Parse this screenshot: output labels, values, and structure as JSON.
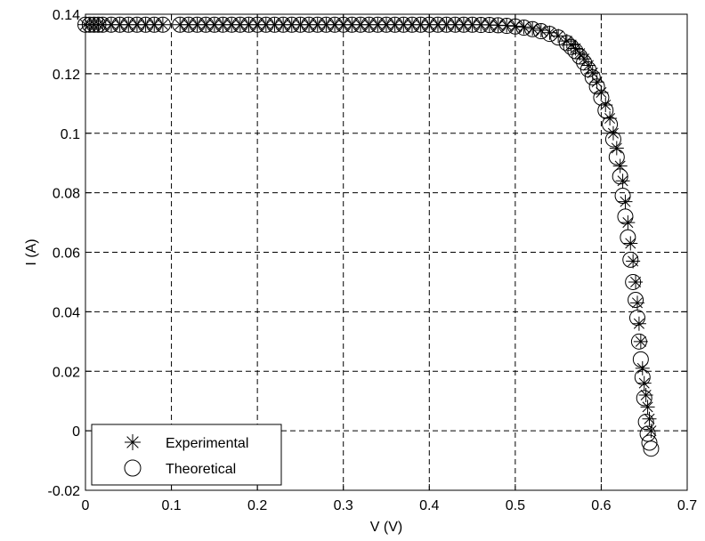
{
  "chart_data": {
    "type": "scatter",
    "title": "",
    "xlabel": "V (V)",
    "ylabel": "I (A)",
    "xlim": [
      0,
      0.7
    ],
    "ylim": [
      -0.02,
      0.14
    ],
    "grid": true,
    "grid_style": "dashed",
    "legend_position": "bottom-left",
    "x_tick_labels": [
      "0",
      "0.1",
      "0.2",
      "0.3",
      "0.4",
      "0.5",
      "0.6",
      "0.7"
    ],
    "y_tick_labels": [
      "-0.02",
      "0",
      "0.02",
      "0.04",
      "0.06",
      "0.08",
      "0.1",
      "0.12",
      "0.14"
    ],
    "series": [
      {
        "name": "Experimental",
        "marker": "asterisk",
        "color": "#000000",
        "x": [
          0.0,
          0.005,
          0.01,
          0.015,
          0.02,
          0.03,
          0.04,
          0.05,
          0.06,
          0.07,
          0.08,
          0.09,
          0.11,
          0.12,
          0.13,
          0.14,
          0.15,
          0.16,
          0.17,
          0.18,
          0.19,
          0.2,
          0.21,
          0.22,
          0.23,
          0.24,
          0.25,
          0.26,
          0.27,
          0.28,
          0.29,
          0.3,
          0.31,
          0.32,
          0.33,
          0.34,
          0.35,
          0.36,
          0.37,
          0.38,
          0.39,
          0.4,
          0.41,
          0.42,
          0.43,
          0.44,
          0.45,
          0.46,
          0.47,
          0.48,
          0.49,
          0.5,
          0.51,
          0.52,
          0.53,
          0.54,
          0.55,
          0.56,
          0.565,
          0.57,
          0.575,
          0.58,
          0.585,
          0.59,
          0.595,
          0.6,
          0.605,
          0.61,
          0.614,
          0.618,
          0.622,
          0.625,
          0.628,
          0.631,
          0.634,
          0.637,
          0.64,
          0.642,
          0.644,
          0.646,
          0.648,
          0.65,
          0.652,
          0.654,
          0.656,
          0.658
        ],
        "y": [
          0.1365,
          0.1365,
          0.1365,
          0.1365,
          0.1365,
          0.1365,
          0.1365,
          0.1365,
          0.1365,
          0.1365,
          0.1365,
          0.1365,
          0.1365,
          0.1365,
          0.1365,
          0.1365,
          0.1365,
          0.1365,
          0.1365,
          0.1365,
          0.1365,
          0.1365,
          0.1365,
          0.1365,
          0.1365,
          0.1365,
          0.1365,
          0.1365,
          0.1365,
          0.1365,
          0.1365,
          0.1365,
          0.1365,
          0.1365,
          0.1365,
          0.1365,
          0.1365,
          0.1365,
          0.1365,
          0.1365,
          0.1365,
          0.1365,
          0.1365,
          0.1365,
          0.1365,
          0.1365,
          0.1365,
          0.1365,
          0.1364,
          0.1363,
          0.1362,
          0.136,
          0.1357,
          0.1352,
          0.1346,
          0.1338,
          0.1327,
          0.131,
          0.1297,
          0.1285,
          0.1268,
          0.125,
          0.1228,
          0.1203,
          0.1172,
          0.1137,
          0.1095,
          0.105,
          0.1,
          0.095,
          0.089,
          0.084,
          0.077,
          0.07,
          0.063,
          0.057,
          0.05,
          0.043,
          0.036,
          0.03,
          0.021,
          0.016,
          0.012,
          0.008,
          0.004,
          0.0
        ]
      },
      {
        "name": "Theoretical",
        "marker": "circle",
        "color": "#000000",
        "x": [
          0.0,
          0.005,
          0.01,
          0.015,
          0.02,
          0.03,
          0.04,
          0.05,
          0.06,
          0.07,
          0.08,
          0.09,
          0.11,
          0.12,
          0.13,
          0.14,
          0.15,
          0.16,
          0.17,
          0.18,
          0.19,
          0.2,
          0.21,
          0.22,
          0.23,
          0.24,
          0.25,
          0.26,
          0.27,
          0.28,
          0.29,
          0.3,
          0.31,
          0.32,
          0.33,
          0.34,
          0.35,
          0.36,
          0.37,
          0.38,
          0.39,
          0.4,
          0.41,
          0.42,
          0.43,
          0.44,
          0.45,
          0.46,
          0.47,
          0.48,
          0.49,
          0.5,
          0.51,
          0.52,
          0.53,
          0.54,
          0.55,
          0.56,
          0.565,
          0.57,
          0.575,
          0.58,
          0.585,
          0.59,
          0.595,
          0.6,
          0.605,
          0.61,
          0.614,
          0.618,
          0.622,
          0.625,
          0.628,
          0.631,
          0.634,
          0.637,
          0.64,
          0.642,
          0.644,
          0.646,
          0.648,
          0.65,
          0.652,
          0.654,
          0.656,
          0.658
        ],
        "y": [
          0.1365,
          0.1365,
          0.1365,
          0.1365,
          0.1365,
          0.1365,
          0.1365,
          0.1365,
          0.1365,
          0.1365,
          0.1365,
          0.1365,
          0.1365,
          0.1365,
          0.1365,
          0.1365,
          0.1365,
          0.1365,
          0.1365,
          0.1365,
          0.1365,
          0.1365,
          0.1365,
          0.1365,
          0.1365,
          0.1365,
          0.1365,
          0.1365,
          0.1365,
          0.1365,
          0.1365,
          0.1365,
          0.1365,
          0.1365,
          0.1365,
          0.1365,
          0.1365,
          0.1365,
          0.1365,
          0.1365,
          0.1365,
          0.1365,
          0.1365,
          0.1365,
          0.1365,
          0.1365,
          0.1365,
          0.1364,
          0.1364,
          0.1363,
          0.1361,
          0.1359,
          0.1355,
          0.135,
          0.1343,
          0.1334,
          0.1322,
          0.1303,
          0.129,
          0.1276,
          0.1258,
          0.1238,
          0.1215,
          0.1188,
          0.1157,
          0.112,
          0.1077,
          0.103,
          0.098,
          0.092,
          0.0855,
          0.079,
          0.072,
          0.065,
          0.0575,
          0.05,
          0.044,
          0.038,
          0.03,
          0.024,
          0.018,
          0.011,
          0.003,
          -0.001,
          -0.004,
          -0.006
        ]
      }
    ]
  }
}
